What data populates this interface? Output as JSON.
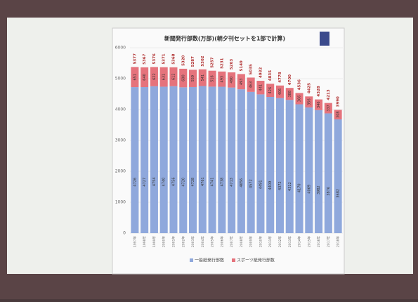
{
  "chart_data": {
    "type": "stacked_bar",
    "title": "新聞発行部数(万部)(朝夕刊セットを1部で計算)",
    "categories": [
      "1997年",
      "1998年",
      "1999年",
      "2000年",
      "2001年",
      "2002年",
      "2003年",
      "2004年",
      "2005年",
      "2006年",
      "2007年",
      "2008年",
      "2009年",
      "2010年",
      "2011年",
      "2012年",
      "2013年",
      "2014年",
      "2015年",
      "2016年",
      "2017年",
      "2018年"
    ],
    "series": [
      {
        "name": "一般紙発行部数",
        "color": "#8fa8dc",
        "values": [
          4726,
          4727,
          4754,
          4740,
          4756,
          4720,
          4728,
          4761,
          4741,
          4738,
          4713,
          4656,
          4572,
          4491,
          4409,
          4372,
          4312,
          4170,
          4069,
          3982,
          3876,
          3682
        ]
      },
      {
        "name": "スポーツ紙発行部数",
        "color": "#e5737c",
        "values": [
          651,
          640,
          622,
          631,
          612,
          600,
          559,
          541,
          516,
          493,
          490,
          493,
          463,
          441,
          426,
          406,
          388,
          366,
          356,
          346,
          337,
          308
        ]
      }
    ],
    "totals": [
      5377,
      5367,
      5376,
      5371,
      5368,
      5320,
      5287,
      5302,
      5257,
      5231,
      5203,
      5149,
      5035,
      4932,
      4835,
      4778,
      4700,
      4536,
      4425,
      4328,
      4213,
      3990
    ],
    "ylim": [
      0,
      6000
    ],
    "yticks": [
      0,
      1000,
      2000,
      3000,
      4000,
      5000,
      6000
    ],
    "grid": true
  }
}
